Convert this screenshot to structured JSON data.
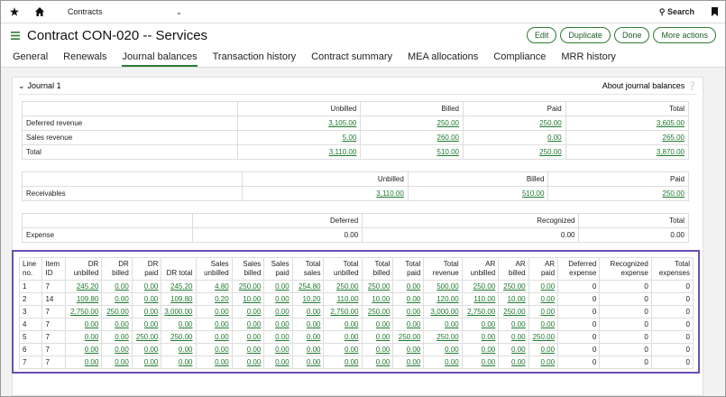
{
  "header": {
    "nav": "Contracts",
    "search": "Search",
    "title": "Contract CON-020 -- Services",
    "buttons": [
      "Edit",
      "Duplicate",
      "Done",
      "More actions"
    ]
  },
  "tabs": {
    "items": [
      "General",
      "Renewals",
      "Journal balances",
      "Transaction history",
      "Contract summary",
      "MEA allocations",
      "Compliance",
      "MRR history"
    ],
    "active": 2
  },
  "section": {
    "title": "Journal 1",
    "help": "About journal balances"
  },
  "revenue_table": {
    "columns": [
      "Unbilled",
      "Billed",
      "Paid",
      "Total"
    ],
    "rows": [
      [
        "Deferred revenue",
        "3,105.00",
        "250.00",
        "250.00",
        "3,605.00"
      ],
      [
        "Sales revenue",
        "5.00",
        "260.00",
        "0.00",
        "265.00"
      ],
      [
        "Total",
        "3,110.00",
        "510.00",
        "250.00",
        "3,870.00"
      ]
    ]
  },
  "receivables_table": {
    "columns": [
      "Unbilled",
      "Billed",
      "Paid"
    ],
    "rows": [
      [
        "Receivables",
        "3,110.00",
        "510.00",
        "250.00"
      ]
    ]
  },
  "expense_table": {
    "columns": [
      "Deferred",
      "Recognized",
      "Total"
    ],
    "rows": [
      [
        "Expense",
        "0.00",
        "0.00",
        "0.00"
      ]
    ]
  },
  "lines_table": {
    "columns": [
      "Line no.",
      "Item ID",
      "DR unbilled",
      "DR billed",
      "DR paid",
      "DR total",
      "Sales unbilled",
      "Sales billed",
      "Sales paid",
      "Total sales",
      "Total unbilled",
      "Total billed",
      "Total paid",
      "Total revenue",
      "AR unbilled",
      "AR billed",
      "AR paid",
      "Deferred expense",
      "Recognized expense",
      "Total expenses"
    ],
    "rows": [
      [
        "1",
        "7",
        "245.20",
        "0.00",
        "0.00",
        "245.20",
        "4.80",
        "250.00",
        "0.00",
        "254.80",
        "250.00",
        "250.00",
        "0.00",
        "500.00",
        "250.00",
        "250.00",
        "0.00",
        "0",
        "0",
        "0"
      ],
      [
        "2",
        "14",
        "109.80",
        "0.00",
        "0.00",
        "109.80",
        "0.20",
        "10.00",
        "0.00",
        "10.20",
        "110.00",
        "10.00",
        "0.00",
        "120.00",
        "110.00",
        "10.00",
        "0.00",
        "0",
        "0",
        "0"
      ],
      [
        "3",
        "7",
        "2,750.00",
        "250.00",
        "0.00",
        "3,000.00",
        "0.00",
        "0.00",
        "0.00",
        "0.00",
        "2,750.00",
        "250.00",
        "0.00",
        "3,000.00",
        "2,750.00",
        "250.00",
        "0.00",
        "0",
        "0",
        "0"
      ],
      [
        "4",
        "7",
        "0.00",
        "0.00",
        "0.00",
        "0.00",
        "0.00",
        "0.00",
        "0.00",
        "0.00",
        "0.00",
        "0.00",
        "0.00",
        "0.00",
        "0.00",
        "0.00",
        "0.00",
        "0",
        "0",
        "0"
      ],
      [
        "5",
        "7",
        "0.00",
        "0.00",
        "250.00",
        "250.00",
        "0.00",
        "0.00",
        "0.00",
        "0.00",
        "0.00",
        "0.00",
        "250.00",
        "250.00",
        "0.00",
        "0.00",
        "250.00",
        "0",
        "0",
        "0"
      ],
      [
        "6",
        "7",
        "0.00",
        "0.00",
        "0.00",
        "0.00",
        "0.00",
        "0.00",
        "0.00",
        "0.00",
        "0.00",
        "0.00",
        "0.00",
        "0.00",
        "0.00",
        "0.00",
        "0.00",
        "0",
        "0",
        "0"
      ],
      [
        "7",
        "7",
        "0.00",
        "0.00",
        "0.00",
        "0.00",
        "0.00",
        "0.00",
        "0.00",
        "0.00",
        "0.00",
        "0.00",
        "0.00",
        "0.00",
        "0.00",
        "0.00",
        "0.00",
        "0",
        "0",
        "0"
      ]
    ]
  }
}
